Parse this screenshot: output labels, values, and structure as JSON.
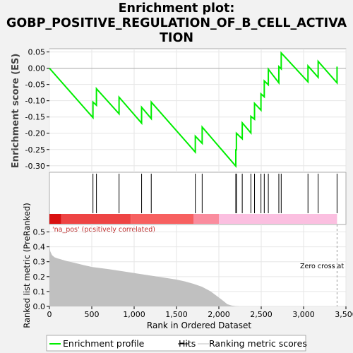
{
  "chart_data": {
    "type": "line",
    "title_lines": [
      "Enrichment plot:",
      "GOBP_POSITIVE_REGULATION_OF_B_CELL_ACTIVA",
      "TION"
    ],
    "top_panel": {
      "ylabel": "Enrichment score (ES)",
      "ylim": [
        -0.32,
        0.06
      ],
      "yticks": [
        0.05,
        0.0,
        -0.05,
        -0.1,
        -0.15,
        -0.2,
        -0.25,
        -0.3
      ],
      "ytick_labels": [
        "0.05",
        "0.00",
        "-0.05",
        "-0.10",
        "-0.15",
        "-0.20",
        "-0.25",
        "-0.30"
      ],
      "series": [
        {
          "name": "Enrichment profile",
          "color": "#00ee00",
          "x": [
            0,
            514,
            514,
            555,
            555,
            822,
            822,
            1088,
            1088,
            1202,
            1202,
            1722,
            1722,
            1803,
            1803,
            2200,
            2200,
            2207,
            2207,
            2276,
            2276,
            2378,
            2378,
            2421,
            2421,
            2497,
            2497,
            2536,
            2536,
            2584,
            2584,
            2708,
            2708,
            2736,
            2736,
            3052,
            3052,
            3172,
            3172,
            3395,
            3395
          ],
          "y": [
            0.0,
            -0.152,
            -0.104,
            -0.114,
            -0.063,
            -0.14,
            -0.089,
            -0.169,
            -0.12,
            -0.155,
            -0.104,
            -0.258,
            -0.209,
            -0.231,
            -0.181,
            -0.301,
            -0.251,
            -0.251,
            -0.2,
            -0.217,
            -0.168,
            -0.199,
            -0.148,
            -0.157,
            -0.108,
            -0.129,
            -0.079,
            -0.088,
            -0.039,
            -0.051,
            -0.003,
            -0.045,
            0.005,
            -0.002,
            0.047,
            -0.042,
            0.007,
            -0.028,
            0.021,
            -0.045,
            0.005
          ]
        }
      ],
      "hline_y": 0.0
    },
    "hits_panel": {
      "name": "Hits",
      "positions": [
        514,
        555,
        822,
        1088,
        1202,
        1722,
        1803,
        2200,
        2207,
        2276,
        2378,
        2421,
        2497,
        2536,
        2584,
        2708,
        2736,
        3052,
        3172,
        3395
      ]
    },
    "color_bar": {
      "segments": [
        {
          "from": 0,
          "to": 140,
          "color": "#d91010"
        },
        {
          "from": 140,
          "to": 960,
          "color": "#ee4444"
        },
        {
          "from": 960,
          "to": 1700,
          "color": "#f76060"
        },
        {
          "from": 1700,
          "to": 2000,
          "color": "#fa8c9e"
        },
        {
          "from": 2000,
          "to": 3395,
          "color": "#fbbfe0"
        }
      ],
      "label": "'na_pos' (positively correlated)"
    },
    "bottom_panel": {
      "ylabel": "Ranked list metric (PreRanked)",
      "xlabel": "Rank in Ordered Dataset",
      "ylim": [
        0,
        0.55
      ],
      "yticks": [
        0.0,
        0.1,
        0.2,
        0.3,
        0.4,
        0.5
      ],
      "ytick_labels": [
        "0.0",
        "0.1",
        "0.2",
        "0.3",
        "0.4",
        "0.5"
      ],
      "series": [
        {
          "name": "Ranking metric scores",
          "color": "#c0c0c0",
          "x": [
            0,
            10,
            30,
            60,
            100,
            200,
            300,
            400,
            500,
            700,
            900,
            1100,
            1300,
            1500,
            1600,
            1700,
            1800,
            1900,
            2000,
            2050,
            2100,
            2150,
            2200,
            2250,
            3395
          ],
          "y": [
            0.41,
            0.37,
            0.345,
            0.33,
            0.322,
            0.305,
            0.292,
            0.278,
            0.265,
            0.25,
            0.233,
            0.215,
            0.198,
            0.18,
            0.168,
            0.152,
            0.132,
            0.102,
            0.06,
            0.038,
            0.015,
            0.006,
            0.002,
            0.0,
            0.0
          ]
        }
      ],
      "zero_cross_x": 3395,
      "zero_cross_label": "Zero cross at"
    },
    "xlim": [
      0,
      3500
    ],
    "xticks": [
      0,
      500,
      1000,
      1500,
      2000,
      2500,
      3000,
      3500
    ],
    "xtick_labels": [
      "0",
      "500",
      "1,000",
      "1,500",
      "2,000",
      "2,500",
      "3,000",
      "3,500"
    ],
    "legend": {
      "placement": "bottom",
      "entries": [
        "Enrichment profile",
        "Hits",
        "Ranking metric scores"
      ]
    }
  }
}
